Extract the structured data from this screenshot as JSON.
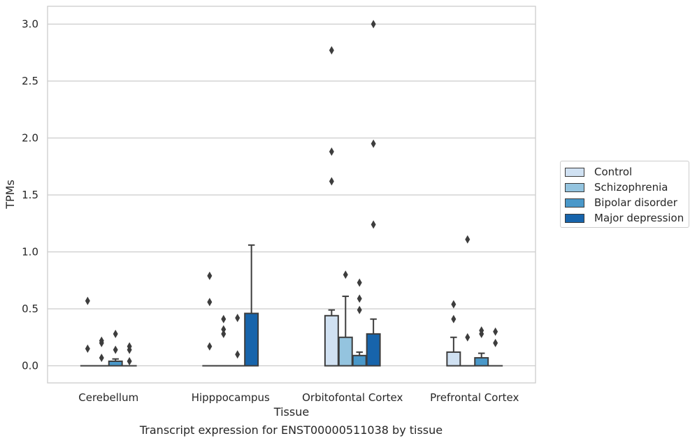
{
  "caption": "Transcript expression for ENST00000511038 by tissue",
  "chart_data": {
    "type": "box",
    "xlabel": "Tissue",
    "ylabel": "TPMs",
    "ylim": [
      -0.15,
      3.15
    ],
    "yticks": [
      0.0,
      0.5,
      1.0,
      1.5,
      2.0,
      2.5,
      3.0
    ],
    "ytick_labels": [
      "0.0",
      "0.5",
      "1.0",
      "1.5",
      "2.0",
      "2.5",
      "3.0"
    ],
    "grid": true,
    "legend_position": "right",
    "categories": [
      "Cerebellum",
      "Hipppocampus",
      "Orbitofontal Cortex",
      "Prefrontal Cortex"
    ],
    "series": [
      {
        "name": "Control",
        "color": "#d0e1f2",
        "boxes": [
          {
            "whislo": 0.0,
            "q1": 0.0,
            "med": 0.0,
            "q3": 0.0,
            "whishi": 0.0,
            "fliers": [
              0.57,
              0.15
            ]
          },
          {
            "whislo": 0.0,
            "q1": 0.0,
            "med": 0.0,
            "q3": 0.0,
            "whishi": 0.0,
            "fliers": [
              0.79,
              0.56,
              0.17
            ]
          },
          {
            "whislo": 0.0,
            "q1": 0.0,
            "med": 0.0,
            "q3": 0.44,
            "whishi": 0.49,
            "fliers": [
              2.77,
              1.88,
              1.62
            ]
          },
          {
            "whislo": 0.0,
            "q1": 0.0,
            "med": 0.0,
            "q3": 0.12,
            "whishi": 0.25,
            "fliers": [
              0.54,
              0.41
            ]
          }
        ]
      },
      {
        "name": "Schizophrenia",
        "color": "#94c4df",
        "boxes": [
          {
            "whislo": 0.0,
            "q1": 0.0,
            "med": 0.0,
            "q3": 0.0,
            "whishi": 0.0,
            "fliers": [
              0.22,
              0.2,
              0.07
            ]
          },
          {
            "whislo": 0.0,
            "q1": 0.0,
            "med": 0.0,
            "q3": 0.0,
            "whishi": 0.0,
            "fliers": [
              0.41,
              0.32,
              0.28
            ]
          },
          {
            "whislo": 0.0,
            "q1": 0.0,
            "med": 0.0,
            "q3": 0.25,
            "whishi": 0.61,
            "fliers": [
              0.8
            ]
          },
          {
            "whislo": 0.0,
            "q1": 0.0,
            "med": 0.0,
            "q3": 0.0,
            "whishi": 0.0,
            "fliers": [
              1.11,
              0.25
            ]
          }
        ]
      },
      {
        "name": "Bipolar disorder",
        "color": "#4a98c9",
        "boxes": [
          {
            "whislo": 0.0,
            "q1": 0.0,
            "med": 0.0,
            "q3": 0.04,
            "whishi": 0.06,
            "fliers": [
              0.28,
              0.14
            ]
          },
          {
            "whislo": 0.0,
            "q1": 0.0,
            "med": 0.0,
            "q3": 0.0,
            "whishi": 0.0,
            "fliers": [
              0.42,
              0.1
            ]
          },
          {
            "whislo": 0.0,
            "q1": 0.0,
            "med": 0.0,
            "q3": 0.09,
            "whishi": 0.12,
            "fliers": [
              0.73,
              0.59,
              0.49
            ]
          },
          {
            "whislo": 0.0,
            "q1": 0.0,
            "med": 0.0,
            "q3": 0.07,
            "whishi": 0.11,
            "fliers": [
              0.31,
              0.28
            ]
          }
        ]
      },
      {
        "name": "Major depression",
        "color": "#1764ab",
        "boxes": [
          {
            "whislo": 0.0,
            "q1": 0.0,
            "med": 0.0,
            "q3": 0.0,
            "whishi": 0.0,
            "fliers": [
              0.17,
              0.14,
              0.04
            ]
          },
          {
            "whislo": 0.0,
            "q1": 0.0,
            "med": 0.0,
            "q3": 0.46,
            "whishi": 1.06,
            "fliers": []
          },
          {
            "whislo": 0.0,
            "q1": 0.0,
            "med": 0.0,
            "q3": 0.28,
            "whishi": 0.41,
            "fliers": [
              3.0,
              1.95,
              1.24
            ]
          },
          {
            "whislo": 0.0,
            "q1": 0.0,
            "med": 0.0,
            "q3": 0.0,
            "whishi": 0.0,
            "fliers": [
              0.3,
              0.2
            ]
          }
        ]
      }
    ]
  }
}
